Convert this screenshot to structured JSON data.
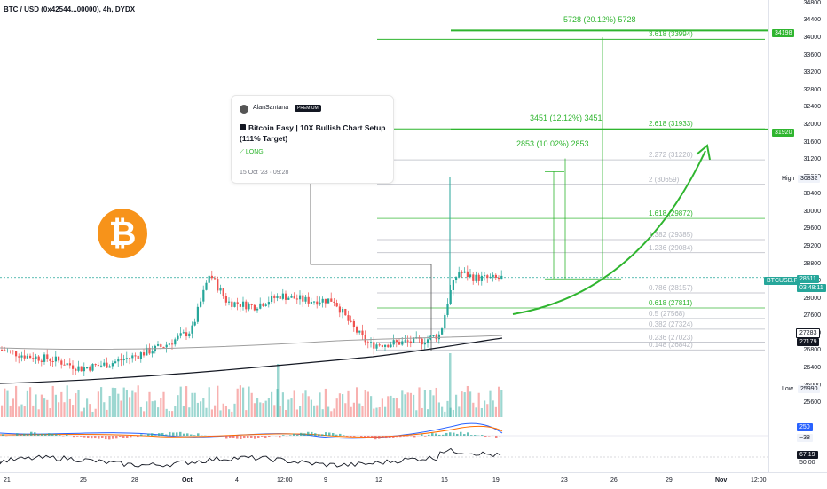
{
  "title": "BTC / USD (0x42544...00000), 4h, DYDX",
  "idea": {
    "author": "AlanSantana",
    "badge": "PREMIUM",
    "title": "Bitcoin Easy | 10X Bullish Chart Setup (111% Target)",
    "direction": "LONG",
    "date": "15 Oct '23 · 09:28"
  },
  "logo_symbol": "₿",
  "measures": {
    "top": "5728 (20.12%) 5728",
    "mid": "3451 (12.12%) 3451",
    "low": "2853 (10.02%) 2853"
  },
  "fib_levels": [
    {
      "label": "3.618 (33994)",
      "price": 33994,
      "color": "#2fb52f",
      "bold": true
    },
    {
      "label": "2.618 (31933)",
      "price": 31933,
      "color": "#2fb52f",
      "bold": true
    },
    {
      "label": "2.272 (31220)",
      "price": 31220,
      "color": "#b2b5be",
      "bold": false
    },
    {
      "label": "2 (30659)",
      "price": 30659,
      "color": "#b2b5be",
      "bold": false
    },
    {
      "label": "1.618 (29872)",
      "price": 29872,
      "color": "#2fb52f",
      "bold": false
    },
    {
      "label": "1.382 (29385)",
      "price": 29385,
      "color": "#b2b5be",
      "bold": false
    },
    {
      "label": "1.236 (29084)",
      "price": 29084,
      "color": "#b2b5be",
      "bold": false
    },
    {
      "label": "0.786 (28157)",
      "price": 28157,
      "color": "#b2b5be",
      "bold": false
    },
    {
      "label": "0.618 (27811)",
      "price": 27811,
      "color": "#2fb52f",
      "bold": false
    },
    {
      "label": "0.5 (27568)",
      "price": 27568,
      "color": "#b2b5be",
      "bold": false
    },
    {
      "label": "0.382 (27324)",
      "price": 27324,
      "color": "#b2b5be",
      "bold": false
    },
    {
      "label": "0.236 (27023)",
      "price": 27023,
      "color": "#b2b5be",
      "bold": false
    },
    {
      "label": "0.148 (26842)",
      "price": 26842,
      "color": "#b2b5be",
      "bold": false
    }
  ],
  "y_axis": {
    "ticks": [
      "34800",
      "34400",
      "34000",
      "33600",
      "33200",
      "32800",
      "32400",
      "32000",
      "31600",
      "31200",
      "30800",
      "30400",
      "30000",
      "29600",
      "29200",
      "28800",
      "28400",
      "28000",
      "27600",
      "27200",
      "26800",
      "26400",
      "26000",
      "25600"
    ],
    "tags": {
      "upper": "34198",
      "lower": "31920",
      "high_label": "High",
      "high_value": "30832",
      "symbol": "BTCUSD.P",
      "price": "28511",
      "countdown": "03:48:11",
      "ma1": "27283",
      "ma2": "27179",
      "low_label": "Low",
      "low_value": "25990",
      "ind1": "250",
      "ind2": "−38",
      "rsi": "67.19",
      "rsi_base": "50.00"
    }
  },
  "x_axis": [
    "21",
    "25",
    "28",
    "Oct",
    "4",
    "12:00",
    "9",
    "12",
    "16",
    "19",
    "23",
    "26",
    "29",
    "Nov",
    "12:00"
  ],
  "colors": {
    "up": "#26a69a",
    "down": "#ef5350",
    "target": "#2fb52f",
    "ma": "#131722",
    "ma2": "#9e9e9e"
  },
  "chart_data": {
    "type": "candlestick",
    "y_range": [
      25400,
      34900
    ],
    "price_levels": {
      "target_1": 34198,
      "target_2": 31920,
      "current": 28511,
      "high": 30832,
      "low": 25990
    }
  }
}
